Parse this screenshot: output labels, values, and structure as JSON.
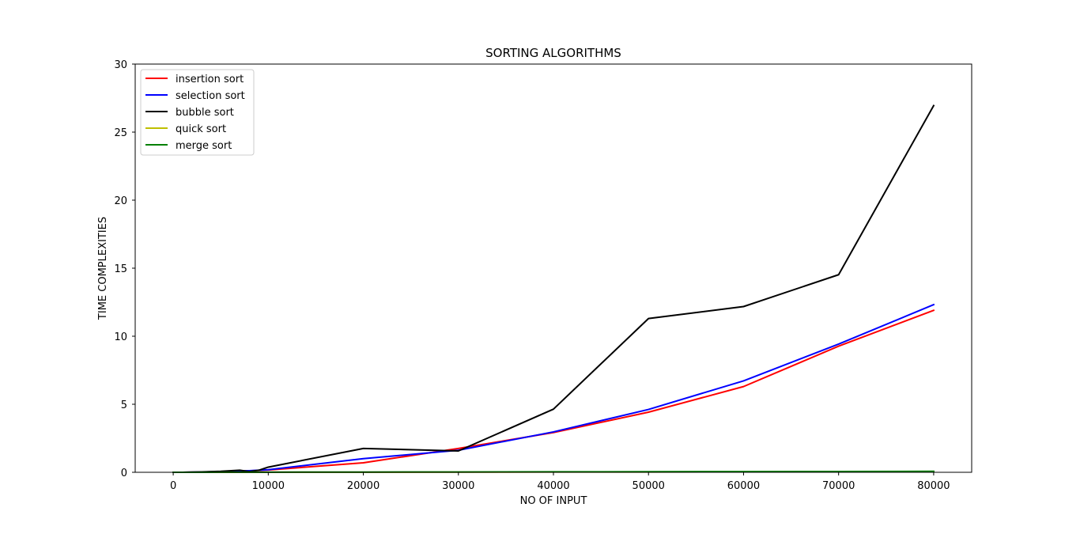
{
  "chart_data": {
    "type": "line",
    "title": "SORTING ALGORITHMS",
    "xlabel": "NO OF INPUT",
    "ylabel": "TIME COMPLEXITIES",
    "xlim": [
      -4000,
      84000
    ],
    "ylim": [
      0,
      30
    ],
    "xticks": [
      0,
      10000,
      20000,
      30000,
      40000,
      50000,
      60000,
      70000,
      80000
    ],
    "yticks": [
      0,
      5,
      10,
      15,
      20,
      25,
      30
    ],
    "grid": false,
    "legend_position": "upper-left",
    "series": [
      {
        "name": "insertion sort",
        "color": "#ff0000",
        "x": [
          0,
          1000,
          3000,
          5000,
          7000,
          8000,
          9000,
          10000,
          20000,
          30000,
          40000,
          50000,
          60000,
          70000,
          80000
        ],
        "y": [
          0,
          0.001,
          0.02,
          0.05,
          0.09,
          0.11,
          0.14,
          0.17,
          0.7,
          1.75,
          2.92,
          4.42,
          6.3,
          9.27,
          11.9
        ]
      },
      {
        "name": "selection sort",
        "color": "#0000ff",
        "x": [
          0,
          1000,
          3000,
          5000,
          7000,
          8000,
          9000,
          10000,
          20000,
          30000,
          40000,
          50000,
          60000,
          70000,
          80000
        ],
        "y": [
          0,
          0.001,
          0.02,
          0.05,
          0.1,
          0.12,
          0.15,
          0.19,
          1.0,
          1.62,
          2.97,
          4.62,
          6.72,
          9.42,
          12.32
        ]
      },
      {
        "name": "bubble sort",
        "color": "#000000",
        "x": [
          0,
          1000,
          3000,
          5000,
          7000,
          8000,
          9000,
          10000,
          20000,
          30000,
          40000,
          50000,
          60000,
          70000,
          80000
        ],
        "y": [
          0,
          0.002,
          0.03,
          0.07,
          0.15,
          0.05,
          0.15,
          0.38,
          1.75,
          1.57,
          4.64,
          11.3,
          12.18,
          14.52,
          26.95
        ]
      },
      {
        "name": "quick sort",
        "color": "#bfbf00",
        "x": [
          0,
          1000,
          3000,
          5000,
          7000,
          8000,
          9000,
          10000,
          20000,
          30000,
          40000,
          50000,
          60000,
          70000,
          80000
        ],
        "y": [
          0,
          0.0005,
          0.001,
          0.002,
          0.003,
          0.003,
          0.004,
          0.004,
          0.009,
          0.014,
          0.02,
          0.025,
          0.031,
          0.037,
          0.043
        ]
      },
      {
        "name": "merge sort",
        "color": "#008000",
        "x": [
          0,
          1000,
          3000,
          5000,
          7000,
          8000,
          9000,
          10000,
          20000,
          30000,
          40000,
          50000,
          60000,
          70000,
          80000
        ],
        "y": [
          0,
          0.001,
          0.002,
          0.004,
          0.005,
          0.006,
          0.007,
          0.008,
          0.016,
          0.025,
          0.034,
          0.043,
          0.052,
          0.061,
          0.07
        ]
      }
    ]
  }
}
